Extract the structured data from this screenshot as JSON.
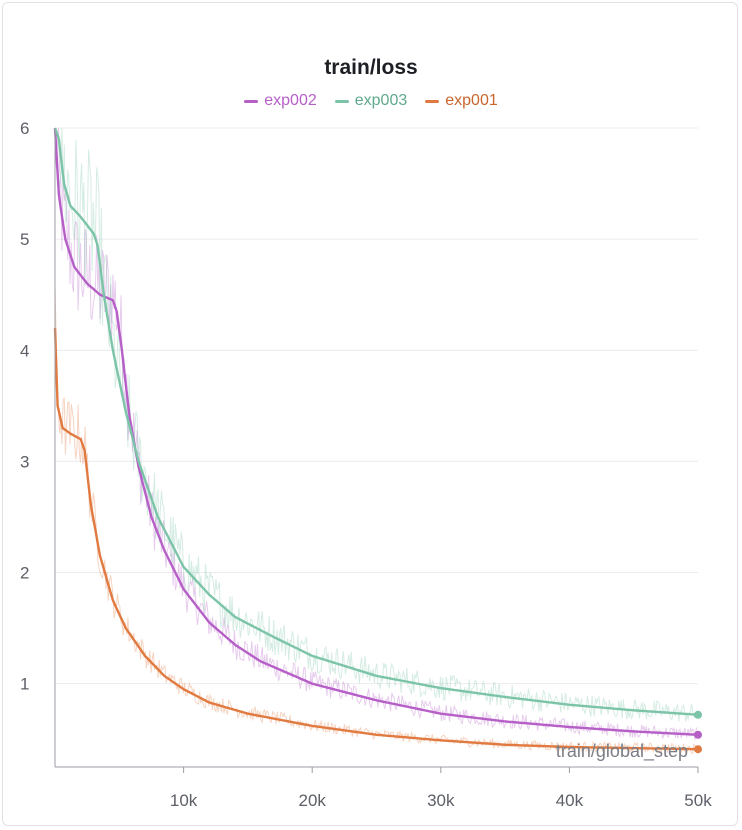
{
  "chart_data": {
    "type": "line",
    "title": "train/loss",
    "xlabel": "train/global_step",
    "ylabel": "",
    "xlim": [
      0,
      50000
    ],
    "ylim": [
      0.25,
      6
    ],
    "x_ticks": [
      "10k",
      "20k",
      "30k",
      "40k",
      "50k"
    ],
    "x_tick_values": [
      10000,
      20000,
      30000,
      40000,
      50000
    ],
    "y_ticks": [
      "1",
      "2",
      "3",
      "4",
      "5",
      "6"
    ],
    "y_tick_values": [
      1,
      2,
      3,
      4,
      5,
      6
    ],
    "grid": true,
    "legend_position": "top-center",
    "series": [
      {
        "name": "exp002",
        "color": "#b55fc7",
        "noise": 0.12,
        "points": [
          [
            0,
            6.0
          ],
          [
            300,
            5.4
          ],
          [
            800,
            5.0
          ],
          [
            1500,
            4.75
          ],
          [
            2500,
            4.6
          ],
          [
            3500,
            4.5
          ],
          [
            4500,
            4.45
          ],
          [
            4800,
            4.35
          ],
          [
            5200,
            4.0
          ],
          [
            5800,
            3.4
          ],
          [
            6500,
            2.95
          ],
          [
            7500,
            2.5
          ],
          [
            8500,
            2.2
          ],
          [
            10000,
            1.85
          ],
          [
            12000,
            1.55
          ],
          [
            14000,
            1.35
          ],
          [
            16000,
            1.2
          ],
          [
            20000,
            1.0
          ],
          [
            25000,
            0.85
          ],
          [
            30000,
            0.73
          ],
          [
            35000,
            0.66
          ],
          [
            40000,
            0.61
          ],
          [
            45000,
            0.57
          ],
          [
            50000,
            0.54
          ]
        ]
      },
      {
        "name": "exp003",
        "color": "#7cc4a8",
        "noise": 0.14,
        "points": [
          [
            0,
            6.0
          ],
          [
            300,
            5.9
          ],
          [
            700,
            5.5
          ],
          [
            1200,
            5.3
          ],
          [
            2000,
            5.2
          ],
          [
            3000,
            5.05
          ],
          [
            3300,
            4.95
          ],
          [
            3800,
            4.5
          ],
          [
            4500,
            4.0
          ],
          [
            5500,
            3.45
          ],
          [
            6500,
            3.0
          ],
          [
            8000,
            2.5
          ],
          [
            10000,
            2.05
          ],
          [
            12000,
            1.8
          ],
          [
            14000,
            1.6
          ],
          [
            17000,
            1.42
          ],
          [
            20000,
            1.25
          ],
          [
            25000,
            1.07
          ],
          [
            30000,
            0.96
          ],
          [
            35000,
            0.88
          ],
          [
            40000,
            0.81
          ],
          [
            45000,
            0.76
          ],
          [
            50000,
            0.72
          ]
        ]
      },
      {
        "name": "exp001",
        "color": "#e07a40",
        "noise": 0.1,
        "points": [
          [
            0,
            4.2
          ],
          [
            200,
            3.5
          ],
          [
            600,
            3.3
          ],
          [
            1200,
            3.25
          ],
          [
            2000,
            3.2
          ],
          [
            2300,
            3.1
          ],
          [
            2800,
            2.6
          ],
          [
            3500,
            2.15
          ],
          [
            4500,
            1.75
          ],
          [
            5500,
            1.5
          ],
          [
            7000,
            1.25
          ],
          [
            8500,
            1.07
          ],
          [
            10000,
            0.95
          ],
          [
            12000,
            0.83
          ],
          [
            15000,
            0.73
          ],
          [
            20000,
            0.62
          ],
          [
            25000,
            0.54
          ],
          [
            30000,
            0.49
          ],
          [
            35000,
            0.45
          ],
          [
            40000,
            0.43
          ],
          [
            45000,
            0.42
          ],
          [
            50000,
            0.41
          ]
        ]
      }
    ]
  }
}
